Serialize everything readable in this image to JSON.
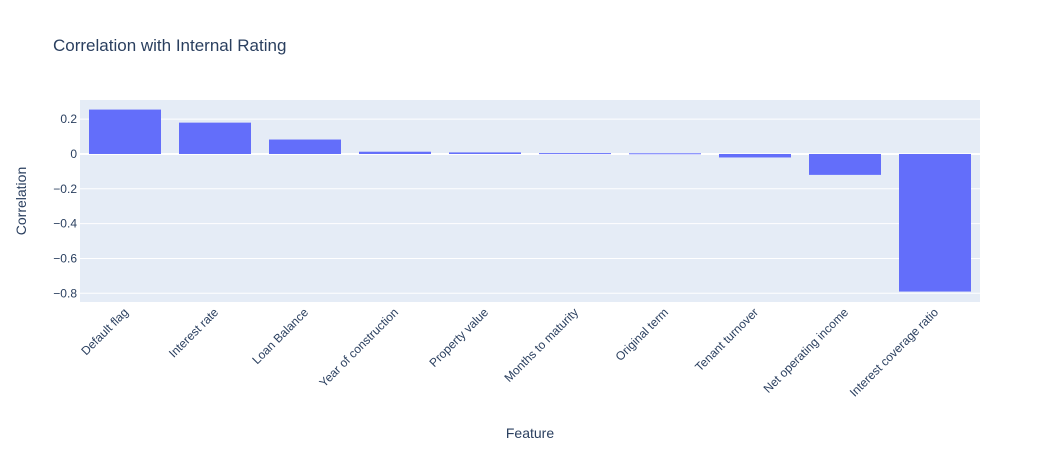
{
  "chart_data": {
    "type": "bar",
    "title": "Correlation with Internal Rating",
    "xlabel": "Feature",
    "ylabel": "Correlation",
    "categories": [
      "Default flag",
      "Interest rate",
      "Loan Balance",
      "Year of construction",
      "Property value",
      "Months to maturity",
      "Original term",
      "Tenant turnover",
      "Net operating income",
      "Interest coverage ratio"
    ],
    "values": [
      0.255,
      0.18,
      0.083,
      0.013,
      0.009,
      0.005,
      0.004,
      -0.02,
      -0.12,
      -0.79
    ],
    "ylim": [
      -0.85,
      0.31
    ],
    "yticks": [
      0.2,
      0,
      -0.2,
      -0.4,
      -0.6,
      -0.8
    ],
    "ytick_labels": [
      "0.2",
      "0",
      "−0.2",
      "−0.4",
      "−0.6",
      "−0.8"
    ],
    "bar_color": "#636efa",
    "plot_bg": "#e5ecf6",
    "grid": true
  }
}
